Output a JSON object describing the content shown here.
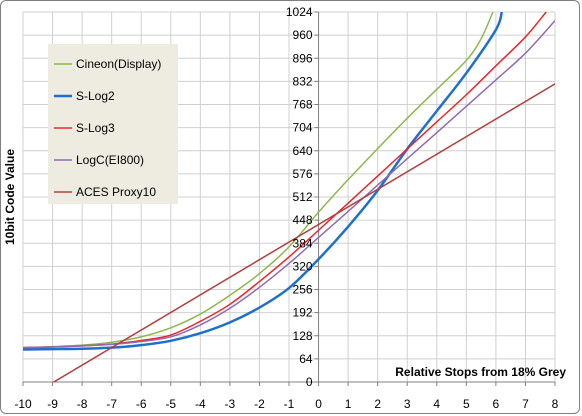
{
  "chart_data": {
    "type": "line",
    "title": "",
    "xlabel": "Relative Stops from 18% Grey",
    "ylabel": "10bit Code Value",
    "xlim": [
      -10,
      8
    ],
    "ylim": [
      0,
      1024
    ],
    "x_ticks": [
      "-10",
      "-9",
      "-8",
      "-7",
      "-6",
      "-5",
      "-4",
      "-3",
      "-2",
      "-1",
      "0",
      "1",
      "2",
      "3",
      "4",
      "5",
      "6",
      "7",
      "8"
    ],
    "y_ticks": [
      "0",
      "64",
      "128",
      "192",
      "256",
      "320",
      "384",
      "448",
      "512",
      "576",
      "640",
      "704",
      "768",
      "832",
      "896",
      "960",
      "1024"
    ],
    "grid": true,
    "legend_position": "top-left",
    "series": [
      {
        "name": "Cineon(Display)",
        "color": "#8cb84b",
        "x": [
          -10,
          -9,
          -8,
          -7,
          -6,
          -5,
          -4,
          -3,
          -2,
          -1,
          0,
          1,
          2,
          3,
          4,
          5,
          5.5,
          5.9
        ],
        "y": [
          95,
          98,
          102,
          110,
          125,
          150,
          188,
          240,
          300,
          374,
          470,
          560,
          646,
          730,
          810,
          890,
          950,
          1024
        ]
      },
      {
        "name": "S-Log2",
        "color": "#1f6fce",
        "x": [
          -10,
          -9,
          -8,
          -7,
          -6,
          -5,
          -4,
          -3,
          -2,
          -1,
          0,
          1,
          2,
          3,
          4,
          5,
          6,
          6.2
        ],
        "y": [
          90,
          91,
          92,
          95,
          102,
          114,
          135,
          165,
          206,
          260,
          340,
          430,
          530,
          645,
          750,
          855,
          975,
          1024
        ]
      },
      {
        "name": "S-Log3",
        "color": "#e8262b",
        "x": [
          -10,
          -9,
          -8,
          -7,
          -6,
          -5,
          -4,
          -3,
          -2,
          -1,
          0,
          1,
          2,
          3,
          4,
          5,
          6,
          7,
          7.7
        ],
        "y": [
          95,
          97,
          100,
          105,
          115,
          130,
          168,
          215,
          278,
          346,
          420,
          495,
          570,
          645,
          720,
          795,
          875,
          955,
          1024
        ]
      },
      {
        "name": "LogC(EI800)",
        "color": "#8e6bb3",
        "x": [
          -10,
          -9,
          -8,
          -7,
          -6,
          -5,
          -4,
          -3,
          -2,
          -1,
          0,
          1,
          2,
          3,
          4,
          5,
          6,
          7,
          8
        ],
        "y": [
          95,
          97,
          100,
          104,
          112,
          125,
          158,
          204,
          262,
          328,
          400,
          472,
          545,
          618,
          690,
          763,
          836,
          910,
          1000
        ]
      },
      {
        "name": "ACES Proxy10",
        "color": "#b33e3e",
        "x": [
          -9,
          8
        ],
        "y": [
          -2,
          825
        ]
      }
    ]
  }
}
